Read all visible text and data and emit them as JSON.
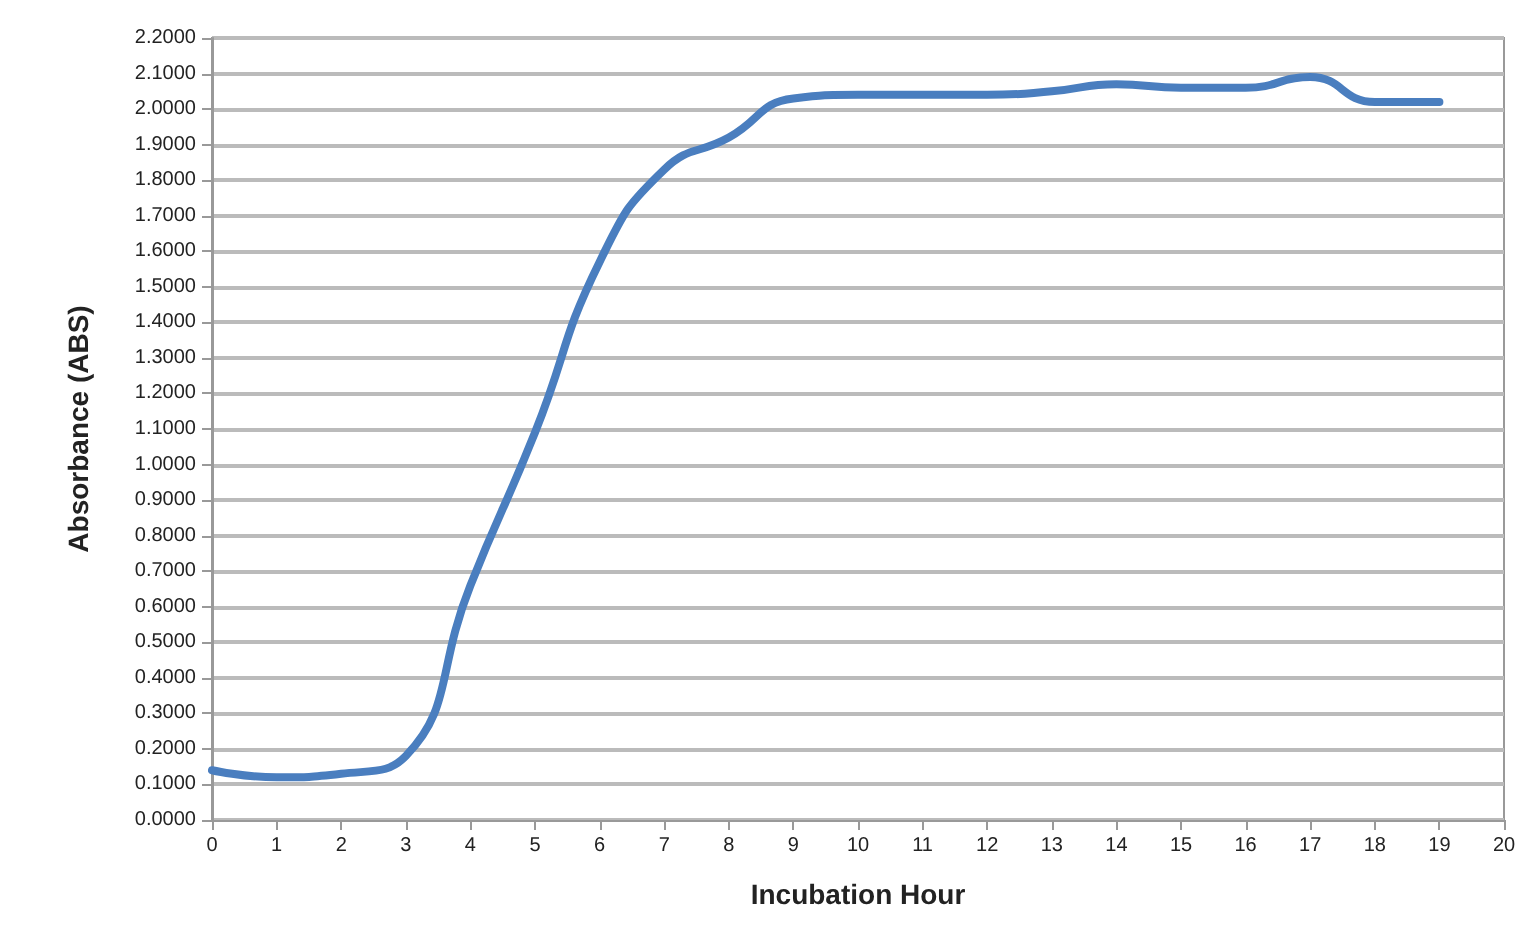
{
  "chart_data": {
    "type": "line",
    "xlabel": "Incubation Hour",
    "ylabel": "Absorbance (ABS)",
    "x": [
      0,
      1,
      2,
      3,
      4,
      5,
      6,
      7,
      8,
      9,
      10,
      11,
      12,
      13,
      14,
      15,
      16,
      17,
      18,
      19
    ],
    "series": [
      {
        "color": "#4a7ebf",
        "values": [
          0.14,
          0.12,
          0.13,
          0.18,
          0.66,
          1.09,
          1.57,
          1.83,
          1.92,
          2.03,
          2.04,
          2.04,
          2.04,
          2.05,
          2.07,
          2.06,
          2.06,
          2.09,
          2.02,
          2.02
        ]
      }
    ],
    "xlim": [
      0,
      20
    ],
    "xticks": [
      0,
      1,
      2,
      3,
      4,
      5,
      6,
      7,
      8,
      9,
      10,
      11,
      12,
      13,
      14,
      15,
      16,
      17,
      18,
      19,
      20
    ],
    "ylim": [
      0,
      2.2
    ],
    "yticks": [
      {
        "value": 0,
        "label": "0.0000"
      },
      {
        "value": 0.1,
        "label": "0.1000"
      },
      {
        "value": 0.2,
        "label": "0.2000"
      },
      {
        "value": 0.3,
        "label": "0.3000"
      },
      {
        "value": 0.4,
        "label": "0.4000"
      },
      {
        "value": 0.5,
        "label": "0.5000"
      },
      {
        "value": 0.6,
        "label": "0.6000"
      },
      {
        "value": 0.7,
        "label": "0.7000"
      },
      {
        "value": 0.8,
        "label": "0.8000"
      },
      {
        "value": 0.9,
        "label": "0.9000"
      },
      {
        "value": 1.0,
        "label": "1.0000"
      },
      {
        "value": 1.1,
        "label": "1.1000"
      },
      {
        "value": 1.2,
        "label": "1.2000"
      },
      {
        "value": 1.3,
        "label": "1.3000"
      },
      {
        "value": 1.4,
        "label": "1.4000"
      },
      {
        "value": 1.5,
        "label": "1.5000"
      },
      {
        "value": 1.6,
        "label": "1.6000"
      },
      {
        "value": 1.7,
        "label": "1.7000"
      },
      {
        "value": 1.8,
        "label": "1.8000"
      },
      {
        "value": 1.9,
        "label": "1.9000"
      },
      {
        "value": 2.0,
        "label": "2.0000"
      },
      {
        "value": 2.1,
        "label": "2.1000"
      },
      {
        "value": 2.2,
        "label": "2.2000"
      }
    ],
    "grid": "y",
    "marker": "none",
    "line_style": "solid"
  }
}
